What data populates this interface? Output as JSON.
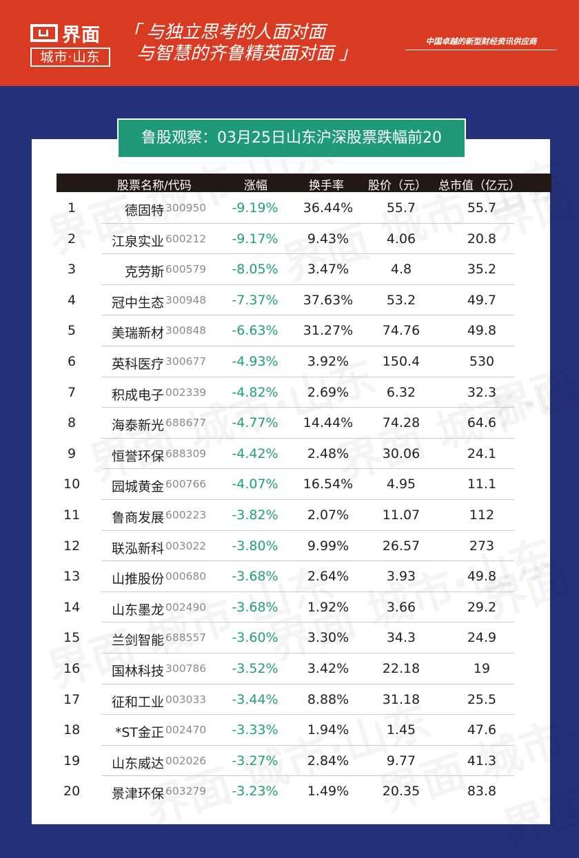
{
  "header": {
    "logo_name": "界面",
    "logo_sub": "城市·山东",
    "slogan_line1": "「 与独立思考的人面对面",
    "slogan_line2": "与智慧的齐鲁精英面对面 」",
    "tagline": "中国卓越的新型财经资讯供应商"
  },
  "title": "鲁股观察：03月25日山东沪深股票跌幅前20",
  "columns": {
    "name_code": "股票名称/代码",
    "change": "涨幅",
    "turnover": "换手率",
    "price": "股价（元）",
    "market_cap": "总市值（亿元）"
  },
  "watermark_text": "界面 城市·山东",
  "rows": [
    {
      "rank": "1",
      "name": "德固特",
      "code": "300950",
      "change": "-9.19%",
      "turnover": "36.44%",
      "price": "55.7",
      "market_cap": "55.7"
    },
    {
      "rank": "2",
      "name": "江泉实业",
      "code": "600212",
      "change": "-9.17%",
      "turnover": "9.43%",
      "price": "4.06",
      "market_cap": "20.8"
    },
    {
      "rank": "3",
      "name": "克劳斯",
      "code": "600579",
      "change": "-8.05%",
      "turnover": "3.47%",
      "price": "4.8",
      "market_cap": "35.2"
    },
    {
      "rank": "4",
      "name": "冠中生态",
      "code": "300948",
      "change": "-7.37%",
      "turnover": "37.63%",
      "price": "53.2",
      "market_cap": "49.7"
    },
    {
      "rank": "5",
      "name": "美瑞新材",
      "code": "300848",
      "change": "-6.63%",
      "turnover": "31.27%",
      "price": "74.76",
      "market_cap": "49.8"
    },
    {
      "rank": "6",
      "name": "英科医疗",
      "code": "300677",
      "change": "-4.93%",
      "turnover": "3.92%",
      "price": "150.4",
      "market_cap": "530"
    },
    {
      "rank": "7",
      "name": "积成电子",
      "code": "002339",
      "change": "-4.82%",
      "turnover": "2.69%",
      "price": "6.32",
      "market_cap": "32.3"
    },
    {
      "rank": "8",
      "name": "海泰新光",
      "code": "688677",
      "change": "-4.77%",
      "turnover": "14.44%",
      "price": "74.28",
      "market_cap": "64.6"
    },
    {
      "rank": "9",
      "name": "恒誉环保",
      "code": "688309",
      "change": "-4.42%",
      "turnover": "2.48%",
      "price": "30.06",
      "market_cap": "24.1"
    },
    {
      "rank": "10",
      "name": "园城黄金",
      "code": "600766",
      "change": "-4.07%",
      "turnover": "16.54%",
      "price": "4.95",
      "market_cap": "11.1"
    },
    {
      "rank": "11",
      "name": "鲁商发展",
      "code": "600223",
      "change": "-3.82%",
      "turnover": "2.07%",
      "price": "11.07",
      "market_cap": "112"
    },
    {
      "rank": "12",
      "name": "联泓新科",
      "code": "003022",
      "change": "-3.80%",
      "turnover": "9.99%",
      "price": "26.57",
      "market_cap": "273"
    },
    {
      "rank": "13",
      "name": "山推股份",
      "code": "000680",
      "change": "-3.68%",
      "turnover": "2.64%",
      "price": "3.93",
      "market_cap": "49.8"
    },
    {
      "rank": "14",
      "name": "山东墨龙",
      "code": "002490",
      "change": "-3.68%",
      "turnover": "1.92%",
      "price": "3.66",
      "market_cap": "29.2"
    },
    {
      "rank": "15",
      "name": "兰剑智能",
      "code": "688557",
      "change": "-3.60%",
      "turnover": "3.30%",
      "price": "34.3",
      "market_cap": "24.9"
    },
    {
      "rank": "16",
      "name": "国林科技",
      "code": "300786",
      "change": "-3.52%",
      "turnover": "3.42%",
      "price": "22.18",
      "market_cap": "19"
    },
    {
      "rank": "17",
      "name": "征和工业",
      "code": "003033",
      "change": "-3.44%",
      "turnover": "8.88%",
      "price": "31.18",
      "market_cap": "25.5"
    },
    {
      "rank": "18",
      "name": "*ST金正",
      "code": "002470",
      "change": "-3.33%",
      "turnover": "1.94%",
      "price": "1.45",
      "market_cap": "47.6"
    },
    {
      "rank": "19",
      "name": "山东威达",
      "code": "002026",
      "change": "-3.27%",
      "turnover": "2.84%",
      "price": "9.77",
      "market_cap": "41.3"
    },
    {
      "rank": "20",
      "name": "景津环保",
      "code": "603279",
      "change": "-3.23%",
      "turnover": "1.49%",
      "price": "20.35",
      "market_cap": "83.8"
    }
  ]
}
